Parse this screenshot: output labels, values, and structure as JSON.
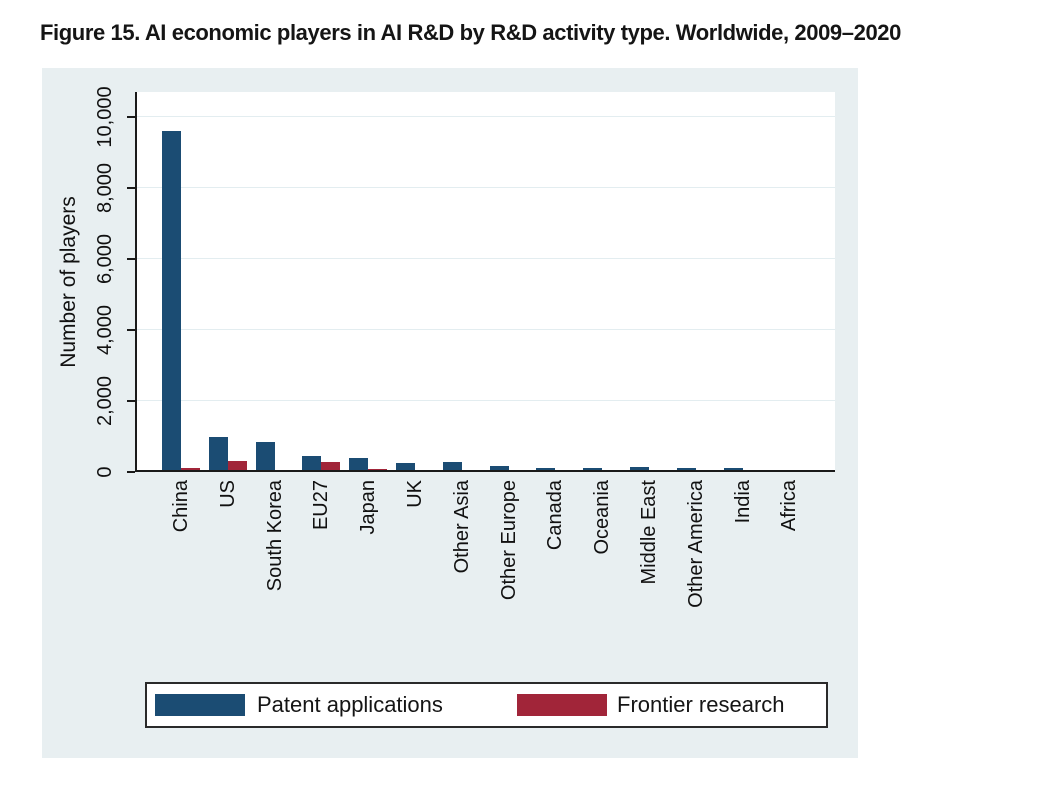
{
  "figure_title": "Figure 15. AI economic players in AI R&D by R&D activity type. Worldwide, 2009–2020",
  "colors": {
    "chart_bg": "#e8eff1",
    "plot_bg": "#ffffff",
    "grid": "#e3edf0",
    "axis": "#1a1a1a",
    "patent_blue": "#1b4c73",
    "frontier_red": "#a12539"
  },
  "chart_data": {
    "type": "bar",
    "title": "Figure 15. AI economic players in AI R&D by R&D activity type. Worldwide, 2009–2020",
    "xlabel": "",
    "ylabel": "Number of players",
    "ylim": [
      0,
      10700
    ],
    "grid": true,
    "legend_position": "bottom",
    "yticks": [
      0,
      2000,
      4000,
      6000,
      8000,
      10000
    ],
    "ytick_labels": [
      "0",
      "2,000",
      "4,000",
      "6,000",
      "8,000",
      "10,000"
    ],
    "categories": [
      "China",
      "US",
      "South Korea",
      "EU27",
      "Japan",
      "UK",
      "Other Asia",
      "Other Europe",
      "Canada",
      "Oceania",
      "Middle East",
      "Other America",
      "India",
      "Africa"
    ],
    "series": [
      {
        "name": "Patent applications",
        "color": "#1b4c73",
        "values": [
          9600,
          1000,
          850,
          450,
          390,
          260,
          285,
          170,
          100,
          115,
          130,
          120,
          110,
          70
        ]
      },
      {
        "name": "Frontier research",
        "color": "#a12539",
        "values": [
          100,
          320,
          40,
          290,
          80,
          70,
          45,
          20,
          25,
          25,
          15,
          25,
          35,
          20
        ]
      }
    ]
  }
}
